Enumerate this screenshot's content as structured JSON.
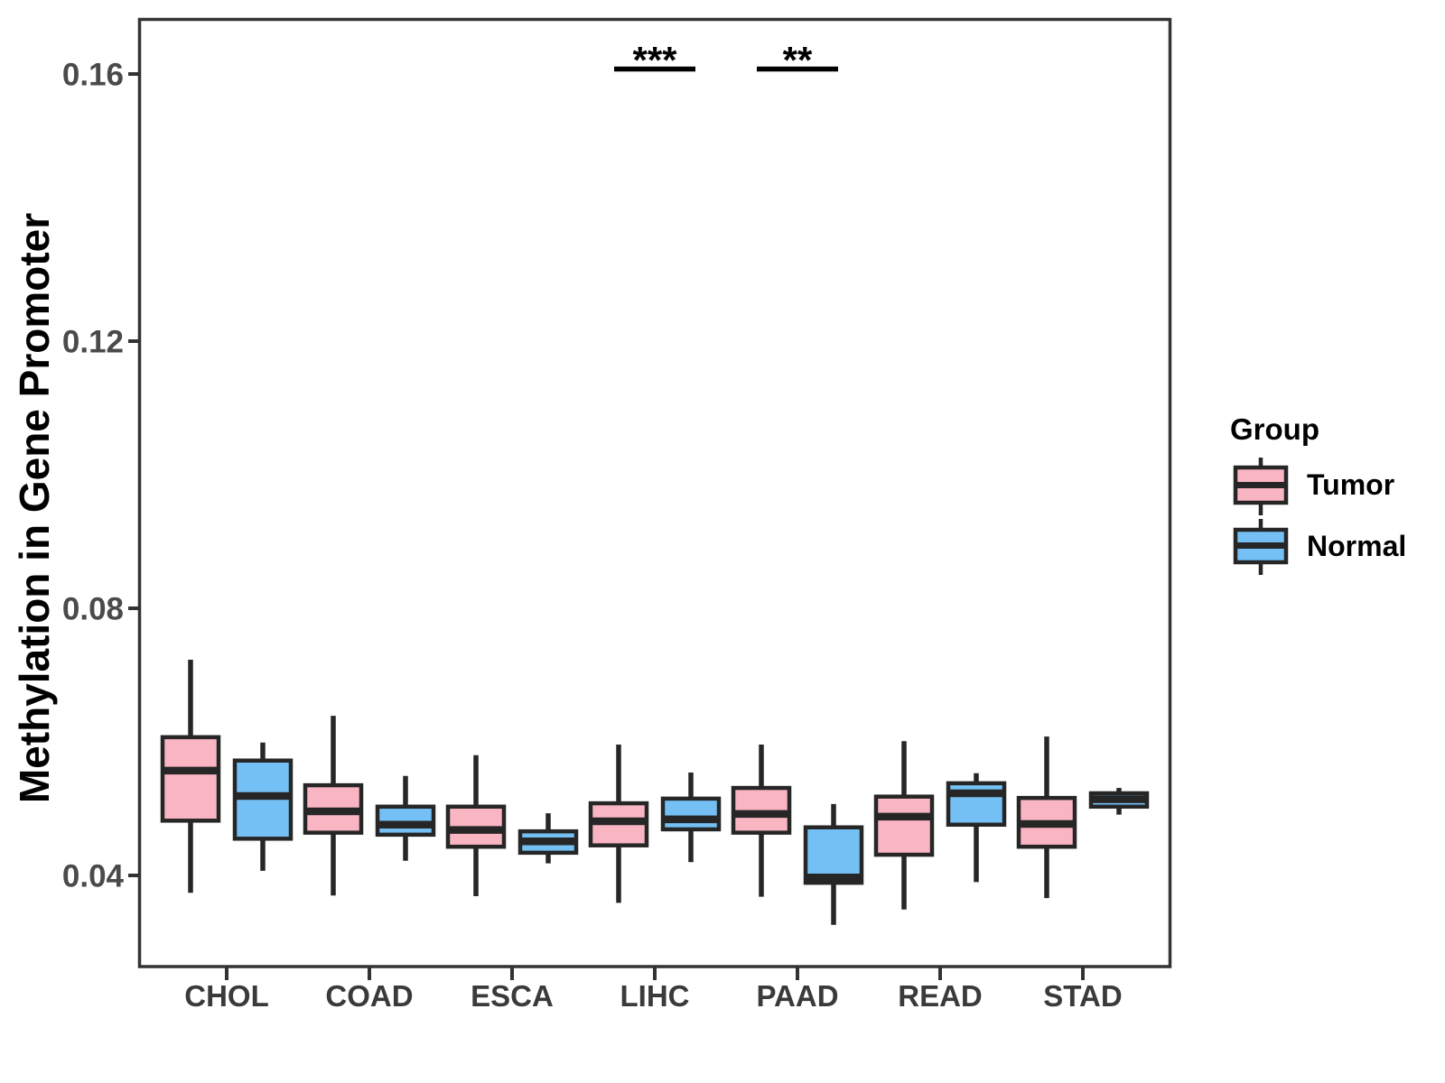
{
  "chart_data": {
    "type": "box",
    "title": "",
    "xlabel": "",
    "ylabel": "Methylation in Gene Promoter",
    "categories": [
      "CHOL",
      "COAD",
      "ESCA",
      "LIHC",
      "PAAD",
      "READ",
      "STAD"
    ],
    "yticks": [
      "0.04",
      "0.08",
      "0.12",
      "0.16"
    ],
    "ytick_values": [
      0.04,
      0.08,
      0.12,
      0.16
    ],
    "ylim": [
      0.026,
      0.168
    ],
    "grid": false,
    "legend": {
      "title": "Group",
      "position": "right",
      "items": [
        {
          "label": "Tumor",
          "fill": "#FAB5C3"
        },
        {
          "label": "Normal",
          "fill": "#74C0F5"
        }
      ]
    },
    "series": [
      {
        "name": "Tumor",
        "fill": "#FAB5C3",
        "boxes": [
          {
            "category": "CHOL",
            "whislo": 0.0374,
            "q1": 0.0482,
            "med": 0.0557,
            "q3": 0.0607,
            "whishi": 0.0723
          },
          {
            "category": "COAD",
            "whislo": 0.037,
            "q1": 0.0464,
            "med": 0.0496,
            "q3": 0.0535,
            "whishi": 0.0639
          },
          {
            "category": "ESCA",
            "whislo": 0.0369,
            "q1": 0.0443,
            "med": 0.0468,
            "q3": 0.0503,
            "whishi": 0.058
          },
          {
            "category": "LIHC",
            "whislo": 0.0359,
            "q1": 0.0445,
            "med": 0.0481,
            "q3": 0.0508,
            "whishi": 0.0596
          },
          {
            "category": "PAAD",
            "whislo": 0.0368,
            "q1": 0.0464,
            "med": 0.0492,
            "q3": 0.0531,
            "whishi": 0.0596
          },
          {
            "category": "READ",
            "whislo": 0.0349,
            "q1": 0.0431,
            "med": 0.0488,
            "q3": 0.0518,
            "whishi": 0.0601
          },
          {
            "category": "STAD",
            "whislo": 0.0366,
            "q1": 0.0443,
            "med": 0.0477,
            "q3": 0.0516,
            "whishi": 0.0608
          }
        ]
      },
      {
        "name": "Normal",
        "fill": "#74C0F5",
        "boxes": [
          {
            "category": "CHOL",
            "whislo": 0.0407,
            "q1": 0.0455,
            "med": 0.0519,
            "q3": 0.0572,
            "whishi": 0.0599
          },
          {
            "category": "COAD",
            "whislo": 0.0422,
            "q1": 0.0461,
            "med": 0.0476,
            "q3": 0.0503,
            "whishi": 0.0549
          },
          {
            "category": "ESCA",
            "whislo": 0.0418,
            "q1": 0.0434,
            "med": 0.0451,
            "q3": 0.0466,
            "whishi": 0.0493
          },
          {
            "category": "LIHC",
            "whislo": 0.042,
            "q1": 0.0469,
            "med": 0.0484,
            "q3": 0.0515,
            "whishi": 0.0554
          },
          {
            "category": "PAAD",
            "whislo": 0.0326,
            "q1": 0.0389,
            "med": 0.0397,
            "q3": 0.0472,
            "whishi": 0.0507
          },
          {
            "category": "READ",
            "whislo": 0.039,
            "q1": 0.0476,
            "med": 0.0523,
            "q3": 0.0538,
            "whishi": 0.0553
          },
          {
            "category": "STAD",
            "whislo": 0.0491,
            "q1": 0.0503,
            "med": 0.0514,
            "q3": 0.0523,
            "whishi": 0.0531
          }
        ]
      }
    ],
    "annotations": [
      {
        "category": "LIHC",
        "label": "***"
      },
      {
        "category": "PAAD",
        "label": "**"
      }
    ],
    "style": {
      "box_border": "#262626",
      "panel_border": "#333333",
      "tick_color": "#333333",
      "y_tick_text": "#4a4a4a",
      "x_tick_text": "#3a3a3a",
      "annotation_color": "#000000",
      "background": "#ffffff"
    }
  }
}
